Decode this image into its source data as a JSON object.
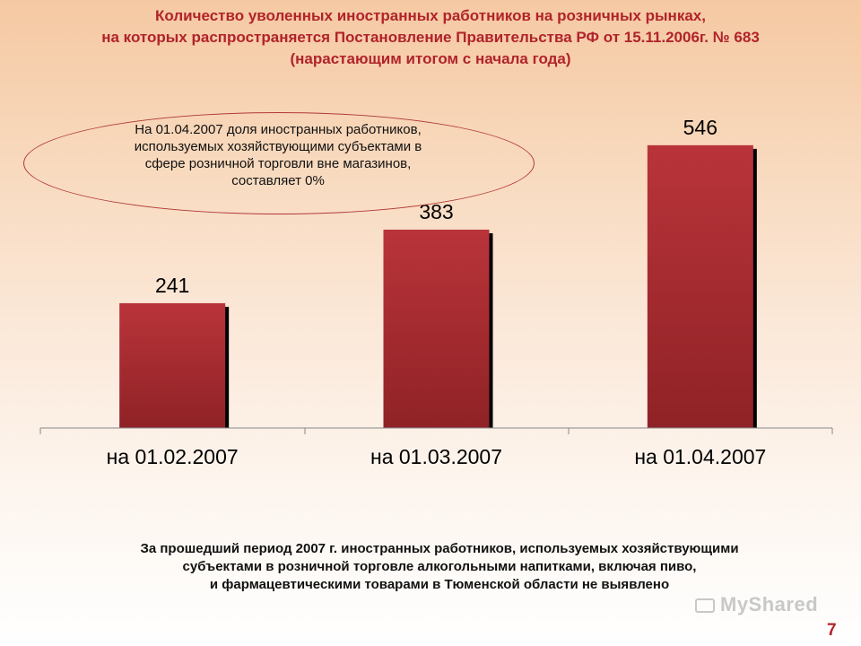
{
  "title_lines": [
    "Количество уволенных иностранных работников на розничных рынках,",
    "на которых распространяется Постановление Правительства РФ от 15.11.2006г. № 683",
    "(нарастающим итогом с начала года)"
  ],
  "callout": {
    "lines": [
      "На 01.04.2007 доля иностранных работников,",
      "используемых хозяйствующими субъектами в",
      "сфере розничной торговли вне магазинов,",
      "составляет 0%"
    ]
  },
  "chart_data": {
    "type": "bar",
    "categories": [
      "на 01.02.2007",
      "на 01.03.2007",
      "на 01.04.2007"
    ],
    "values": [
      241,
      383,
      546
    ],
    "title": "",
    "xlabel": "",
    "ylabel": "",
    "ylim": [
      0,
      700
    ],
    "grid": false,
    "legend": "none",
    "bar_color": "#a82b2e"
  },
  "footer_lines": [
    "За прошедший период 2007 г. иностранных работников, используемых хозяйствующими",
    "субъектами в розничной торговле алкогольными напитками, включая пиво,",
    "и фармацевтическими товарами в Тюменской области не выявлено"
  ],
  "watermark": "MyShared",
  "page_number": "7"
}
